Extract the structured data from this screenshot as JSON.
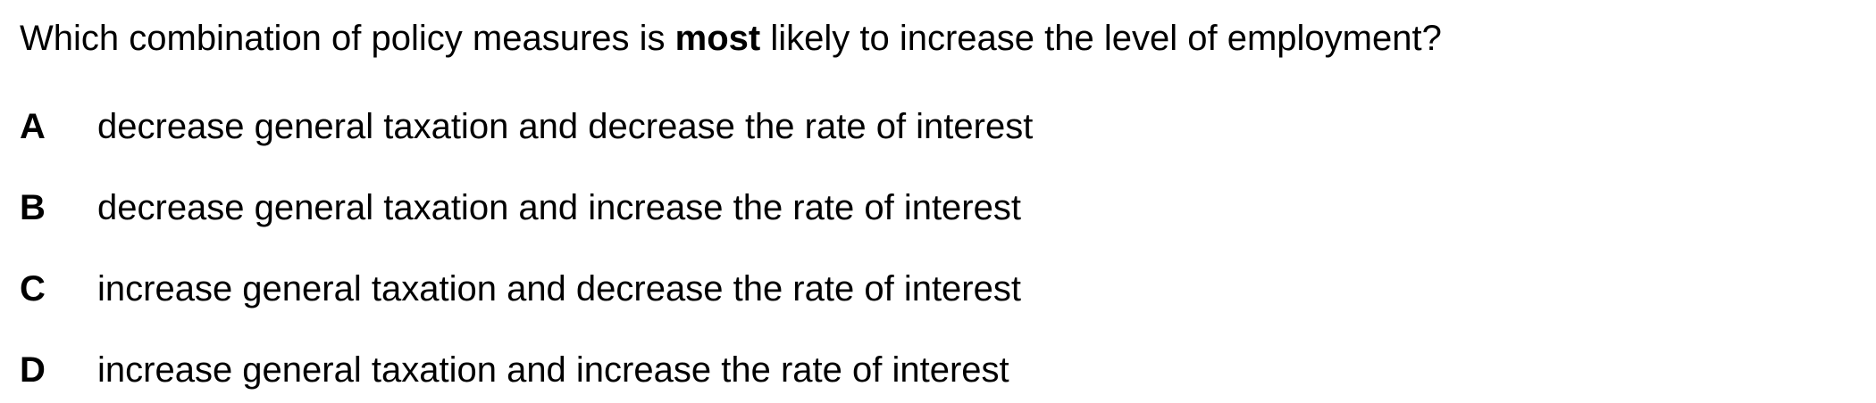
{
  "question": {
    "before": "Which combination of policy measures is ",
    "emphasis": "most",
    "after": " likely to increase the level of employment?"
  },
  "options": [
    {
      "letter": "A",
      "text": "decrease general taxation and decrease the rate of interest"
    },
    {
      "letter": "B",
      "text": "decrease general taxation and increase the rate of interest"
    },
    {
      "letter": "C",
      "text": "increase general taxation and decrease the rate of interest"
    },
    {
      "letter": "D",
      "text": "increase general taxation and increase the rate of interest"
    }
  ]
}
